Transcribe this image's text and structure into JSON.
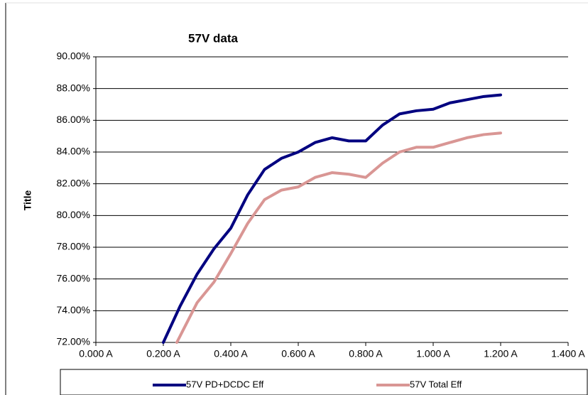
{
  "chart_data": {
    "type": "line",
    "title": "57V data",
    "y_label": "Title",
    "xlim": [
      0,
      1.4
    ],
    "xticks": [
      {
        "value": 0,
        "label": "0.000 A"
      },
      {
        "value": 0.2,
        "label": "0.200 A"
      },
      {
        "value": 0.4,
        "label": "0.400 A"
      },
      {
        "value": 0.6,
        "label": "0.600 A"
      },
      {
        "value": 0.8,
        "label": "0.800 A"
      },
      {
        "value": 1.0,
        "label": "1.000 A"
      },
      {
        "value": 1.2,
        "label": "1.200 A"
      },
      {
        "value": 1.4,
        "label": "1.400 A"
      }
    ],
    "ylim": [
      72,
      90
    ],
    "yticks": [
      {
        "value": 72,
        "label": "72.00%"
      },
      {
        "value": 74,
        "label": "74.00%"
      },
      {
        "value": 76,
        "label": "76.00%"
      },
      {
        "value": 78,
        "label": "78.00%"
      },
      {
        "value": 80,
        "label": "80.00%"
      },
      {
        "value": 82,
        "label": "82.00%"
      },
      {
        "value": 84,
        "label": "84.00%"
      },
      {
        "value": 86,
        "label": "86.00%"
      },
      {
        "value": 88,
        "label": "88.00%"
      },
      {
        "value": 90,
        "label": "90.00%"
      }
    ],
    "grid": true,
    "legend": "bottom",
    "series": [
      {
        "name": "57V PD+DCDC Eff",
        "color": "#000080",
        "x": [
          0.2,
          0.25,
          0.3,
          0.35,
          0.4,
          0.45,
          0.5,
          0.55,
          0.6,
          0.65,
          0.7,
          0.75,
          0.8,
          0.85,
          0.9,
          0.95,
          1.0,
          1.05,
          1.1,
          1.15,
          1.2
        ],
        "values": [
          72.0,
          74.3,
          76.3,
          77.9,
          79.2,
          81.3,
          82.9,
          83.6,
          84.0,
          84.6,
          84.9,
          84.7,
          84.7,
          85.7,
          86.4,
          86.6,
          86.7,
          87.1,
          87.3,
          87.5,
          87.6
        ]
      },
      {
        "name": "57V Total Eff",
        "color": "#d99694",
        "x": [
          0.24,
          0.3,
          0.35,
          0.4,
          0.45,
          0.5,
          0.55,
          0.6,
          0.65,
          0.7,
          0.75,
          0.8,
          0.85,
          0.9,
          0.95,
          1.0,
          1.05,
          1.1,
          1.15,
          1.2
        ],
        "values": [
          72.0,
          74.5,
          75.8,
          77.6,
          79.5,
          81.0,
          81.6,
          81.8,
          82.4,
          82.7,
          82.6,
          82.4,
          83.3,
          84.0,
          84.3,
          84.3,
          84.6,
          84.9,
          85.1,
          85.2
        ]
      }
    ]
  }
}
